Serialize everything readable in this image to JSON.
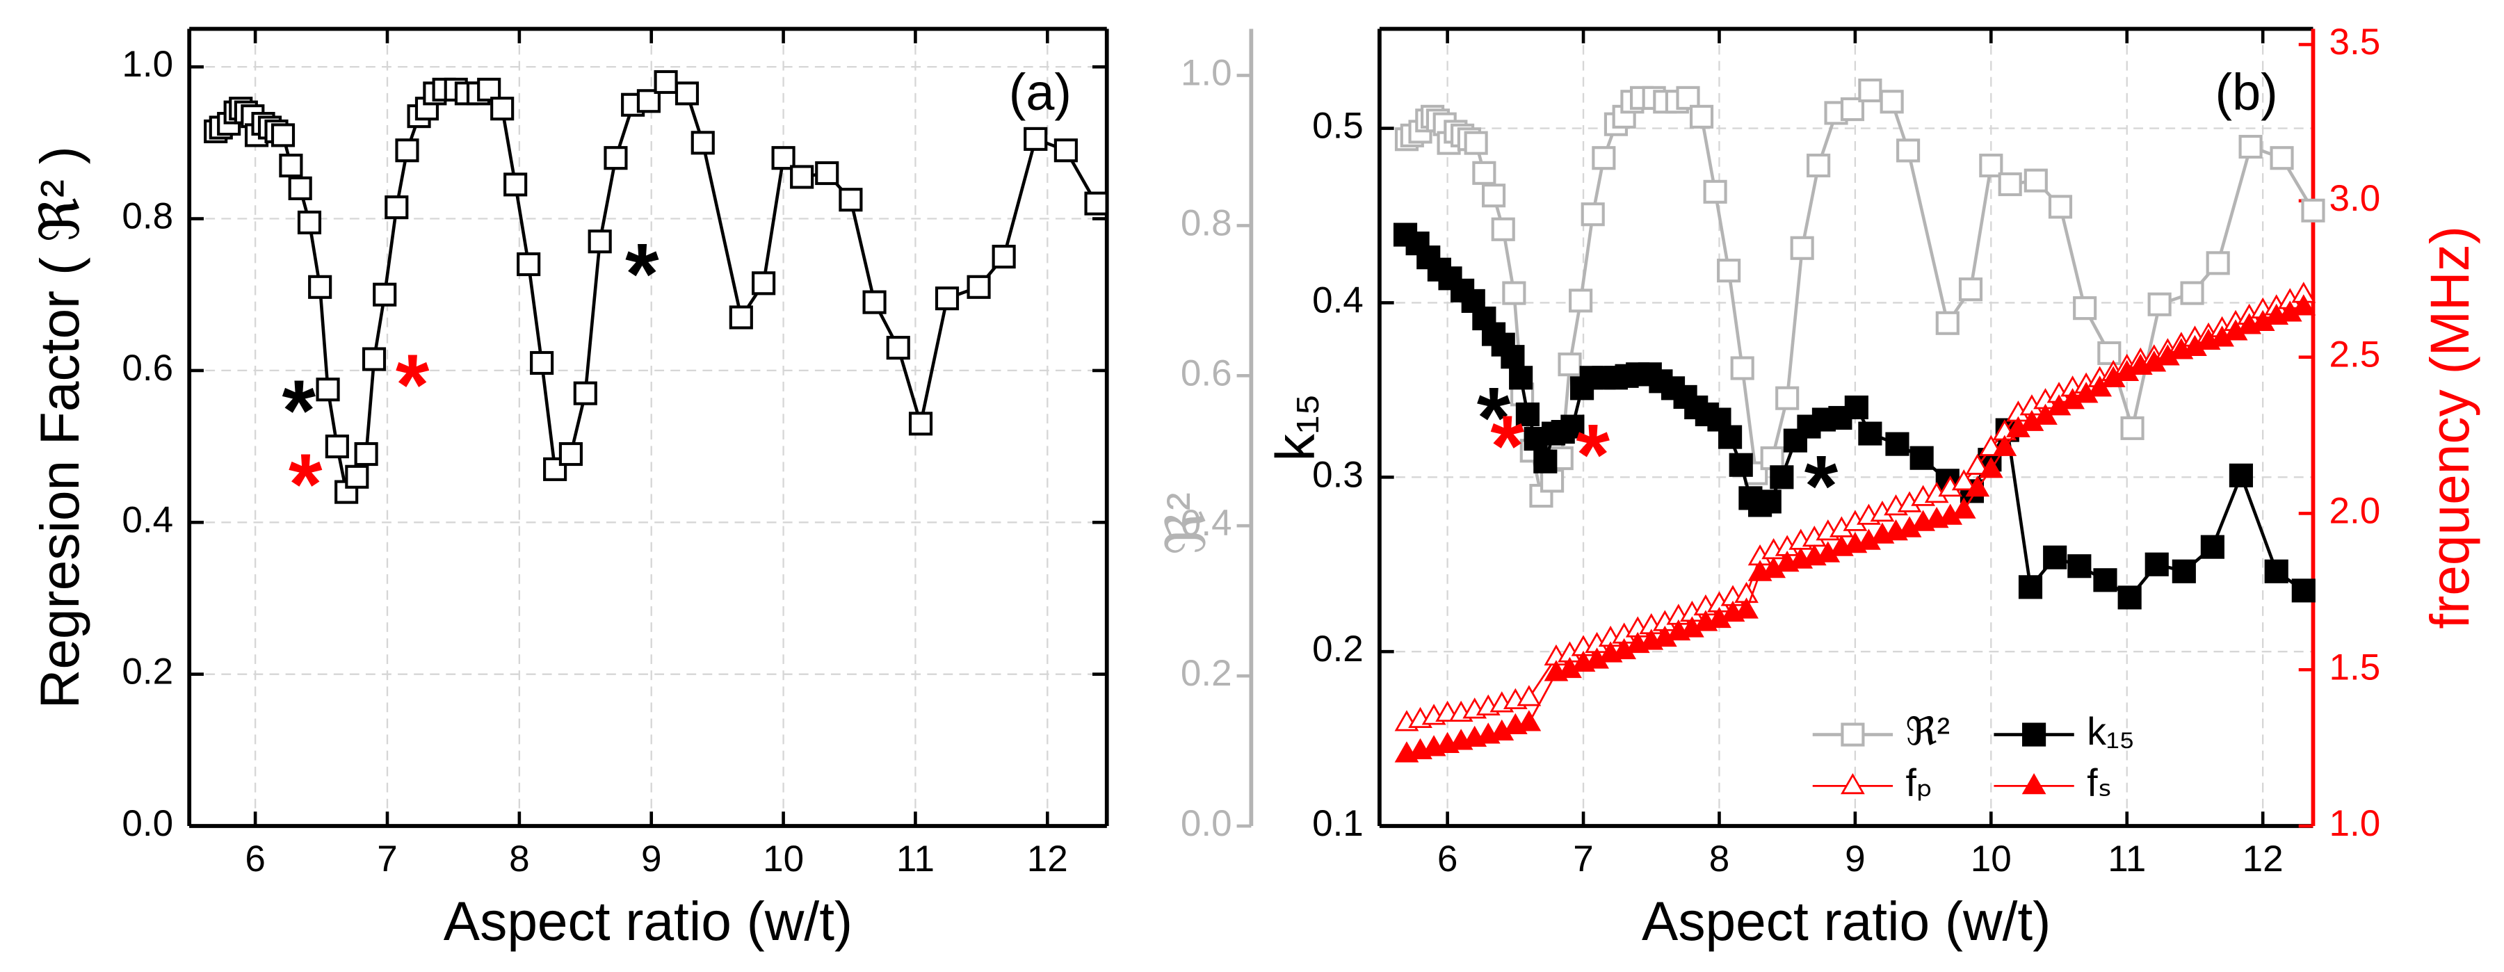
{
  "chart_data": [
    {
      "type": "line",
      "panel_label": "(a)",
      "xlabel": "Aspect ratio (w/t)",
      "ylabel": "Regresion Factor ( ℜ² )",
      "xlim": [
        5.5,
        12.45
      ],
      "xticks": [
        6,
        7,
        8,
        9,
        10,
        11,
        12
      ],
      "ylim": [
        0,
        1.05
      ],
      "yticks": [
        {
          "value": 0,
          "label": "0.0"
        },
        0.2,
        0.4,
        0.6,
        0.8,
        {
          "value": 1,
          "label": "1.0"
        }
      ],
      "grid": true,
      "series": [
        {
          "color": "#000000",
          "marker": "square-open",
          "x": [
            5.7,
            5.74,
            5.8,
            5.85,
            5.89,
            5.93,
            5.98,
            6.01,
            6.06,
            6.11,
            6.16,
            6.21,
            6.27,
            6.34,
            6.41,
            6.49,
            6.55,
            6.62,
            6.69,
            6.77,
            6.84,
            6.9,
            6.98,
            7.07,
            7.15,
            7.24,
            7.3,
            7.36,
            7.43,
            7.52,
            7.6,
            7.69,
            7.77,
            7.87,
            7.97,
            8.07,
            8.17,
            8.27,
            8.39,
            8.5,
            8.61,
            8.73,
            8.86,
            8.98,
            9.11,
            9.27,
            9.39,
            9.68,
            9.85,
            10.0,
            10.14,
            10.33,
            10.51,
            10.69,
            10.87,
            11.04,
            11.24,
            11.48,
            11.67,
            11.91,
            12.14,
            12.37
          ],
          "values": [
            0.915,
            0.92,
            0.925,
            0.94,
            0.945,
            0.94,
            0.935,
            0.91,
            0.925,
            0.92,
            0.915,
            0.91,
            0.87,
            0.84,
            0.795,
            0.71,
            0.575,
            0.5,
            0.44,
            0.46,
            0.49,
            0.615,
            0.7,
            0.815,
            0.89,
            0.935,
            0.945,
            0.965,
            0.97,
            0.97,
            0.965,
            0.965,
            0.97,
            0.945,
            0.845,
            0.74,
            0.61,
            0.47,
            0.49,
            0.57,
            0.77,
            0.88,
            0.95,
            0.955,
            0.98,
            0.965,
            0.9,
            0.67,
            0.715,
            0.88,
            0.855,
            0.86,
            0.825,
            0.69,
            0.63,
            0.53,
            0.695,
            0.71,
            0.75,
            0.905,
            0.89,
            0.82
          ]
        }
      ],
      "annotations": [
        {
          "text": "*",
          "x": 6.33,
          "y": 0.575,
          "color": "#000000"
        },
        {
          "text": "*",
          "x": 8.93,
          "y": 0.755,
          "color": "#000000"
        },
        {
          "text": "*",
          "x": 6.38,
          "y": 0.478,
          "color": "#ff0000"
        },
        {
          "text": "*",
          "x": 7.19,
          "y": 0.609,
          "color": "#ff0000"
        }
      ]
    },
    {
      "type": "line",
      "panel_label": "(b)",
      "xlabel": "Aspect ratio (w/t)",
      "ylabel": "k₁₅",
      "y2label": "frequency (MHz)",
      "y3label": "ℜ²",
      "xlim": [
        5.5,
        12.37
      ],
      "xticks": [
        6,
        7,
        8,
        9,
        10,
        11,
        12
      ],
      "ylim": [
        0.1,
        0.557
      ],
      "yticks": [
        0.1,
        0.2,
        0.3,
        0.4,
        0.5
      ],
      "y2lim": [
        1,
        3.55
      ],
      "y2ticks": [
        {
          "value": 1,
          "label": "1.0"
        },
        1.5,
        {
          "value": 2,
          "label": "2.0"
        },
        2.5,
        {
          "value": 3,
          "label": "3.0"
        },
        3.5
      ],
      "y2color": "#ff0000",
      "y3lim": [
        0,
        1.062
      ],
      "y3ticks": [
        {
          "value": 0,
          "label": "0.0"
        },
        0.2,
        0.4,
        0.6,
        0.8,
        {
          "value": 1,
          "label": "1.0"
        }
      ],
      "y3color": "#b4b4b4",
      "grid": true,
      "legend": "lower right",
      "series": [
        {
          "name": "ℜ²",
          "color": "#b4b4b4",
          "marker": "square-open",
          "axis": "y3",
          "x": [
            5.7,
            5.74,
            5.8,
            5.85,
            5.89,
            5.93,
            5.98,
            6.01,
            6.06,
            6.11,
            6.16,
            6.21,
            6.27,
            6.34,
            6.41,
            6.49,
            6.55,
            6.62,
            6.69,
            6.77,
            6.84,
            6.9,
            6.98,
            7.07,
            7.15,
            7.24,
            7.3,
            7.36,
            7.43,
            7.52,
            7.6,
            7.69,
            7.77,
            7.87,
            7.97,
            8.07,
            8.17,
            8.27,
            8.39,
            8.5,
            8.61,
            8.73,
            8.86,
            8.98,
            9.11,
            9.27,
            9.39,
            9.68,
            9.85,
            10.0,
            10.14,
            10.33,
            10.51,
            10.69,
            10.87,
            11.04,
            11.24,
            11.48,
            11.67,
            11.91,
            12.14,
            12.37
          ],
          "values": [
            0.915,
            0.92,
            0.925,
            0.94,
            0.945,
            0.94,
            0.935,
            0.91,
            0.925,
            0.92,
            0.915,
            0.91,
            0.87,
            0.84,
            0.795,
            0.71,
            0.575,
            0.5,
            0.44,
            0.46,
            0.49,
            0.615,
            0.7,
            0.815,
            0.89,
            0.935,
            0.945,
            0.965,
            0.97,
            0.97,
            0.965,
            0.965,
            0.97,
            0.945,
            0.845,
            0.74,
            0.61,
            0.47,
            0.49,
            0.57,
            0.77,
            0.88,
            0.95,
            0.955,
            0.98,
            0.965,
            0.9,
            0.67,
            0.715,
            0.88,
            0.855,
            0.86,
            0.825,
            0.69,
            0.63,
            0.53,
            0.695,
            0.71,
            0.75,
            0.905,
            0.89,
            0.82
          ]
        },
        {
          "name": "k₁₅",
          "color": "#000000",
          "marker": "square-filled",
          "axis": "y",
          "x": [
            5.69,
            5.78,
            5.86,
            5.94,
            6.02,
            6.11,
            6.19,
            6.27,
            6.34,
            6.41,
            6.48,
            6.54,
            6.59,
            6.65,
            6.72,
            6.78,
            6.85,
            6.92,
            6.99,
            7.06,
            7.15,
            7.24,
            7.32,
            7.4,
            7.49,
            7.57,
            7.66,
            7.75,
            7.83,
            7.91,
            8.0,
            8.08,
            8.16,
            8.23,
            8.3,
            8.37,
            8.46,
            8.56,
            8.66,
            8.77,
            8.89,
            9.01,
            9.11,
            9.31,
            9.49,
            9.68,
            9.86,
            9.99,
            10.12,
            10.29,
            10.47,
            10.65,
            10.84,
            11.02,
            11.22,
            11.42,
            11.63,
            11.84,
            12.1,
            12.3
          ],
          "values": [
            0.439,
            0.434,
            0.426,
            0.419,
            0.414,
            0.407,
            0.401,
            0.391,
            0.382,
            0.376,
            0.369,
            0.357,
            0.336,
            0.322,
            0.309,
            0.325,
            0.326,
            0.329,
            0.351,
            0.357,
            0.357,
            0.357,
            0.358,
            0.359,
            0.359,
            0.355,
            0.351,
            0.346,
            0.34,
            0.336,
            0.333,
            0.323,
            0.307,
            0.288,
            0.284,
            0.286,
            0.3,
            0.321,
            0.329,
            0.333,
            0.334,
            0.34,
            0.325,
            0.319,
            0.311,
            0.298,
            0.292,
            0.31,
            0.327,
            0.237,
            0.254,
            0.249,
            0.241,
            0.231,
            0.25,
            0.246,
            0.26,
            0.301,
            0.246,
            0.235
          ]
        },
        {
          "name": "fₚ",
          "color": "#ff0000",
          "marker": "triangle-open",
          "axis": "y2",
          "x": [
            5.7,
            5.8,
            5.9,
            6.0,
            6.1,
            6.2,
            6.3,
            6.4,
            6.5,
            6.6,
            6.8,
            6.9,
            7.0,
            7.1,
            7.2,
            7.3,
            7.4,
            7.5,
            7.6,
            7.7,
            7.8,
            7.9,
            8.0,
            8.1,
            8.2,
            8.3,
            8.4,
            8.5,
            8.6,
            8.7,
            8.8,
            8.9,
            9.0,
            9.1,
            9.2,
            9.3,
            9.4,
            9.5,
            9.6,
            9.7,
            9.8,
            9.9,
            10.0,
            10.1,
            10.2,
            10.3,
            10.4,
            10.5,
            10.6,
            10.7,
            10.8,
            10.9,
            11.0,
            11.1,
            11.2,
            11.3,
            11.4,
            11.5,
            11.6,
            11.7,
            11.8,
            11.9,
            12.0,
            12.1,
            12.2,
            12.3
          ],
          "values": [
            1.33,
            1.34,
            1.35,
            1.36,
            1.36,
            1.37,
            1.38,
            1.39,
            1.4,
            1.41,
            1.54,
            1.55,
            1.57,
            1.58,
            1.6,
            1.61,
            1.63,
            1.64,
            1.65,
            1.67,
            1.68,
            1.7,
            1.71,
            1.73,
            1.74,
            1.86,
            1.88,
            1.89,
            1.91,
            1.92,
            1.94,
            1.95,
            1.97,
            1.99,
            2.0,
            2.02,
            2.03,
            2.05,
            2.06,
            2.08,
            2.1,
            2.15,
            2.21,
            2.26,
            2.32,
            2.34,
            2.36,
            2.38,
            2.4,
            2.41,
            2.43,
            2.45,
            2.47,
            2.49,
            2.5,
            2.52,
            2.54,
            2.56,
            2.57,
            2.59,
            2.61,
            2.63,
            2.65,
            2.66,
            2.68,
            2.7
          ]
        },
        {
          "name": "fₛ",
          "color": "#ff0000",
          "marker": "triangle-filled",
          "axis": "y2",
          "x": [
            5.7,
            5.8,
            5.9,
            6.0,
            6.1,
            6.2,
            6.3,
            6.4,
            6.5,
            6.6,
            6.8,
            6.9,
            7.0,
            7.1,
            7.2,
            7.3,
            7.4,
            7.5,
            7.6,
            7.7,
            7.8,
            7.9,
            8.0,
            8.1,
            8.2,
            8.3,
            8.4,
            8.5,
            8.6,
            8.7,
            8.8,
            8.9,
            9.0,
            9.1,
            9.2,
            9.3,
            9.4,
            9.5,
            9.6,
            9.7,
            9.8,
            9.9,
            10.0,
            10.1,
            10.2,
            10.3,
            10.4,
            10.5,
            10.6,
            10.7,
            10.8,
            10.9,
            11.0,
            11.1,
            11.2,
            11.3,
            11.4,
            11.5,
            11.6,
            11.7,
            11.8,
            11.9,
            12.0,
            12.1,
            12.2,
            12.3
          ],
          "values": [
            1.23,
            1.24,
            1.25,
            1.26,
            1.27,
            1.28,
            1.29,
            1.3,
            1.32,
            1.33,
            1.49,
            1.5,
            1.52,
            1.53,
            1.55,
            1.56,
            1.58,
            1.59,
            1.6,
            1.62,
            1.63,
            1.65,
            1.66,
            1.68,
            1.69,
            1.81,
            1.82,
            1.84,
            1.85,
            1.86,
            1.87,
            1.89,
            1.9,
            1.91,
            1.93,
            1.94,
            1.95,
            1.97,
            1.98,
            1.99,
            2.01,
            2.08,
            2.14,
            2.21,
            2.27,
            2.29,
            2.31,
            2.34,
            2.36,
            2.38,
            2.4,
            2.43,
            2.45,
            2.47,
            2.48,
            2.5,
            2.52,
            2.53,
            2.55,
            2.56,
            2.58,
            2.6,
            2.61,
            2.63,
            2.64,
            2.66
          ]
        }
      ],
      "annotations": [
        {
          "text": "*",
          "x": 6.34,
          "y": 0.346,
          "color": "#000000"
        },
        {
          "text": "*",
          "x": 8.75,
          "y": 0.307,
          "color": "#000000"
        },
        {
          "text": "*",
          "x": 6.44,
          "y": 0.33,
          "color": "#ff0000"
        },
        {
          "text": "*",
          "x": 7.07,
          "y": 0.325,
          "color": "#ff0000"
        }
      ]
    }
  ]
}
